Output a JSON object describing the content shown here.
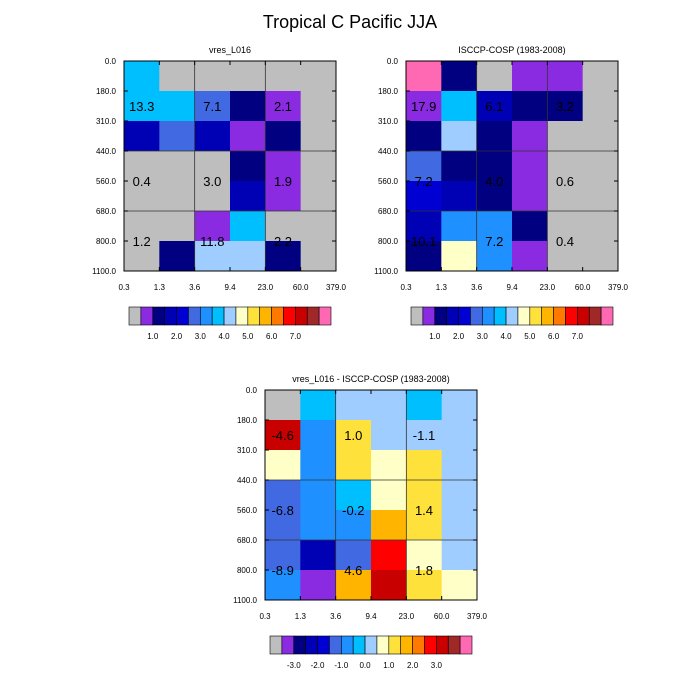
{
  "page_title": "Tropical C Pacific JJA",
  "palettes": {
    "abs": [
      "#bebebe",
      "#8a2be2",
      "#000080",
      "#0000b4",
      "#0000d2",
      "#4169e1",
      "#1e90ff",
      "#00bfff",
      "#a0cdff",
      "#ffffc8",
      "#ffe13c",
      "#ffb400",
      "#ff7800",
      "#ff0000",
      "#c80000",
      "#a02828",
      "#ff69b4"
    ],
    "diff": [
      "#bebebe",
      "#8a2be2",
      "#000080",
      "#0000b4",
      "#0000d2",
      "#4169e1",
      "#1e90ff",
      "#00bfff",
      "#a0cdff",
      "#ffffc8",
      "#ffe13c",
      "#ffb400",
      "#ff7800",
      "#ff0000",
      "#c80000",
      "#a02828",
      "#ff69b4"
    ]
  },
  "colorbars": {
    "abs_labels": [
      "1.0",
      "2.0",
      "3.0",
      "4.0",
      "5.0",
      "6.0",
      "7.0"
    ],
    "diff_labels": [
      "-3.0",
      "-2.0",
      "-1.0",
      "0.0",
      "1.0",
      "2.0",
      "3.0"
    ]
  },
  "chart_data": [
    {
      "type": "heatmap",
      "title": "vres_L016",
      "xticks": [
        "0.3",
        "1.3",
        "3.6",
        "9.4",
        "23.0",
        "60.0",
        "379.0"
      ],
      "yticks": [
        "0.0",
        "180.0",
        "310.0",
        "440.0",
        "560.0",
        "680.0",
        "800.0",
        "1100.0"
      ],
      "palette": "abs",
      "cells": [
        [
          7,
          0,
          0,
          0,
          0,
          0
        ],
        [
          7,
          7,
          5,
          2,
          1,
          0
        ],
        [
          3,
          5,
          3,
          1,
          2,
          0
        ],
        [
          0,
          0,
          0,
          2,
          1,
          0
        ],
        [
          0,
          0,
          0,
          3,
          1,
          0
        ],
        [
          0,
          0,
          1,
          7,
          0,
          0
        ],
        [
          0,
          2,
          8,
          8,
          2,
          0
        ]
      ],
      "annotations": [
        {
          "text": "13.3",
          "col": 0.5,
          "row": 1.5
        },
        {
          "text": "7.1",
          "col": 2.5,
          "row": 1.5
        },
        {
          "text": "2.1",
          "col": 4.5,
          "row": 1.5
        },
        {
          "text": "0.4",
          "col": 0.5,
          "row": 4.0
        },
        {
          "text": "3.0",
          "col": 2.5,
          "row": 4.0
        },
        {
          "text": "1.9",
          "col": 4.5,
          "row": 4.0
        },
        {
          "text": "1.2",
          "col": 0.5,
          "row": 6.0
        },
        {
          "text": "11.8",
          "col": 2.5,
          "row": 6.0
        },
        {
          "text": "2.2",
          "col": 4.5,
          "row": 6.0
        }
      ]
    },
    {
      "type": "heatmap",
      "title": "ISCCP-COSP (1983-2008)",
      "xticks": [
        "0.3",
        "1.3",
        "3.6",
        "9.4",
        "23.0",
        "60.0",
        "379.0"
      ],
      "yticks": [
        "0.0",
        "180.0",
        "310.0",
        "440.0",
        "560.0",
        "680.0",
        "800.0",
        "1100.0"
      ],
      "palette": "abs",
      "cells": [
        [
          16,
          2,
          0,
          1,
          1,
          0
        ],
        [
          1,
          7,
          3,
          2,
          2,
          0
        ],
        [
          2,
          8,
          2,
          1,
          0,
          0
        ],
        [
          5,
          2,
          2,
          1,
          0,
          0
        ],
        [
          4,
          3,
          2,
          1,
          0,
          0
        ],
        [
          3,
          6,
          6,
          2,
          0,
          0
        ],
        [
          2,
          9,
          6,
          1,
          0,
          0
        ]
      ],
      "annotations": [
        {
          "text": "17.9",
          "col": 0.5,
          "row": 1.5
        },
        {
          "text": "6.1",
          "col": 2.5,
          "row": 1.5
        },
        {
          "text": "3.2",
          "col": 4.5,
          "row": 1.5
        },
        {
          "text": "7.2",
          "col": 0.5,
          "row": 4.0
        },
        {
          "text": "4.0",
          "col": 2.5,
          "row": 4.0
        },
        {
          "text": "0.6",
          "col": 4.5,
          "row": 4.0
        },
        {
          "text": "10.1",
          "col": 0.5,
          "row": 6.0
        },
        {
          "text": "7.2",
          "col": 2.5,
          "row": 6.0
        },
        {
          "text": "0.4",
          "col": 4.5,
          "row": 6.0
        }
      ]
    },
    {
      "type": "heatmap",
      "title": "vres_L016 - ISCCP-COSP (1983-2008)",
      "xticks": [
        "0.3",
        "1.3",
        "3.6",
        "9.4",
        "23.0",
        "60.0",
        "379.0"
      ],
      "yticks": [
        "0.0",
        "180.0",
        "310.0",
        "440.0",
        "560.0",
        "680.0",
        "800.0",
        "1100.0"
      ],
      "palette": "diff",
      "cells": [
        [
          0,
          7,
          8,
          8,
          7,
          8
        ],
        [
          14,
          6,
          10,
          8,
          8,
          8
        ],
        [
          9,
          6,
          10,
          9,
          10,
          8
        ],
        [
          5,
          6,
          7,
          9,
          10,
          8
        ],
        [
          5,
          6,
          6,
          11,
          10,
          8
        ],
        [
          5,
          3,
          5,
          13,
          9,
          8
        ],
        [
          6,
          1,
          11,
          14,
          10,
          9
        ]
      ],
      "annotations": [
        {
          "text": "-4.6",
          "col": 0.5,
          "row": 1.5
        },
        {
          "text": "1.0",
          "col": 2.5,
          "row": 1.5
        },
        {
          "text": "-1.1",
          "col": 4.5,
          "row": 1.5
        },
        {
          "text": "-6.8",
          "col": 0.5,
          "row": 4.0
        },
        {
          "text": "-0.2",
          "col": 2.5,
          "row": 4.0
        },
        {
          "text": "1.4",
          "col": 4.5,
          "row": 4.0
        },
        {
          "text": "-8.9",
          "col": 0.5,
          "row": 6.0
        },
        {
          "text": "4.6",
          "col": 2.5,
          "row": 6.0
        },
        {
          "text": "1.8",
          "col": 4.5,
          "row": 6.0
        }
      ]
    }
  ]
}
